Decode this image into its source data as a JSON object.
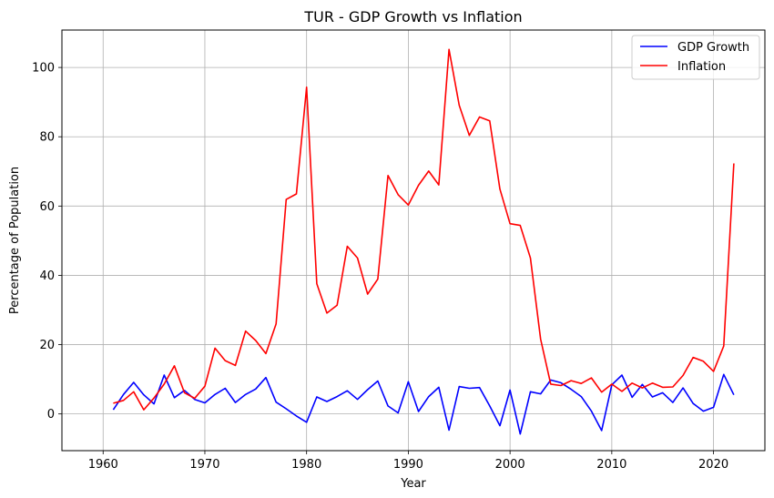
{
  "chart_data": {
    "type": "line",
    "title": "TUR - GDP Growth vs Inflation",
    "xlabel": "Year",
    "ylabel": "Percentage of Population",
    "xlim": [
      1955.95,
      2025.05
    ],
    "ylim": [
      -10.6,
      110.8
    ],
    "xticks": [
      1960,
      1970,
      1980,
      1990,
      2000,
      2010,
      2020
    ],
    "yticks": [
      0,
      20,
      40,
      60,
      80,
      100
    ],
    "grid": true,
    "legend_position": "top-right",
    "x": [
      1961,
      1962,
      1963,
      1964,
      1965,
      1966,
      1967,
      1968,
      1969,
      1970,
      1971,
      1972,
      1973,
      1974,
      1975,
      1976,
      1977,
      1978,
      1979,
      1980,
      1981,
      1982,
      1983,
      1984,
      1985,
      1986,
      1987,
      1988,
      1989,
      1990,
      1991,
      1992,
      1993,
      1994,
      1995,
      1996,
      1997,
      1998,
      1999,
      2000,
      2001,
      2002,
      2003,
      2004,
      2005,
      2006,
      2007,
      2008,
      2009,
      2010,
      2011,
      2012,
      2013,
      2014,
      2015,
      2016,
      2017,
      2018,
      2019,
      2020,
      2021,
      2022
    ],
    "series": [
      {
        "name": "GDP Growth",
        "color": "#0000ff",
        "values": [
          1.2,
          5.6,
          9.1,
          5.5,
          2.9,
          11.2,
          4.7,
          6.8,
          4.2,
          3.2,
          5.6,
          7.4,
          3.3,
          5.6,
          7.2,
          10.5,
          3.4,
          1.5,
          -0.6,
          -2.4,
          4.9,
          3.6,
          5.0,
          6.7,
          4.2,
          7.0,
          9.5,
          2.3,
          0.3,
          9.3,
          0.7,
          5.0,
          7.7,
          -4.7,
          7.9,
          7.4,
          7.6,
          2.3,
          -3.4,
          6.9,
          -5.8,
          6.4,
          5.8,
          9.8,
          9.0,
          7.1,
          5.0,
          0.8,
          -4.8,
          8.4,
          11.2,
          4.8,
          8.5,
          4.9,
          6.1,
          3.3,
          7.5,
          3.0,
          0.8,
          1.9,
          11.4,
          5.5
        ]
      },
      {
        "name": "Inflation",
        "color": "#ff0000",
        "values": [
          3.1,
          3.9,
          6.4,
          1.2,
          4.6,
          8.6,
          13.9,
          6.1,
          4.5,
          8.0,
          19.0,
          15.4,
          14.0,
          23.9,
          21.2,
          17.4,
          26.0,
          61.9,
          63.5,
          94.3,
          37.6,
          29.1,
          31.4,
          48.4,
          45.0,
          34.6,
          38.9,
          68.8,
          63.3,
          60.3,
          66.0,
          70.1,
          66.1,
          105.2,
          89.1,
          80.4,
          85.7,
          84.6,
          64.9,
          54.9,
          54.4,
          45.0,
          21.6,
          8.6,
          8.2,
          9.6,
          8.8,
          10.4,
          6.3,
          8.6,
          6.5,
          8.9,
          7.5,
          8.9,
          7.7,
          7.8,
          11.1,
          16.3,
          15.2,
          12.3,
          19.6,
          72.3
        ]
      }
    ]
  }
}
